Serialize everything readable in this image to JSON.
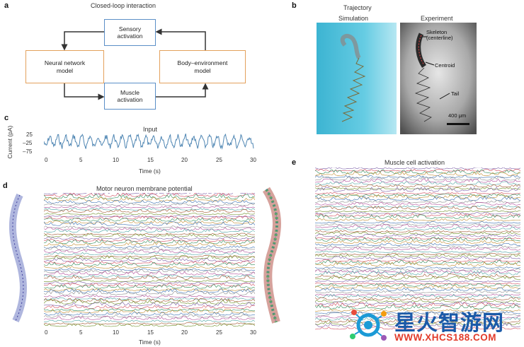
{
  "panel_a": {
    "label": "a",
    "title": "Closed-loop interaction",
    "sensory": "Sensory activation",
    "neural": "Neural network model",
    "body": "Body–environment model",
    "muscle": "Muscle activation"
  },
  "panel_b": {
    "label": "b",
    "title": "Trajectory",
    "sim_label": "Simulation",
    "exp_label": "Experiment",
    "skeleton": "Skeleton (centerline)",
    "centroid": "Centroid",
    "tail": "Tail",
    "scale": "400 μm"
  },
  "panel_c": {
    "label": "c",
    "title": "Input",
    "ylabel": "Current (pA)",
    "xlabel": "Time (s)",
    "yticks": [
      "25",
      "–25",
      "–75"
    ],
    "xticks": [
      "0",
      "5",
      "10",
      "15",
      "20",
      "25",
      "30"
    ]
  },
  "panel_d": {
    "label": "d",
    "title": "Motor neuron membrane potential",
    "xlabel": "Time (s)",
    "xticks": [
      "0",
      "5",
      "10",
      "15",
      "20",
      "25",
      "30"
    ]
  },
  "panel_e": {
    "label": "e",
    "title": "Muscle cell activation"
  },
  "watermark": {
    "cn": "星火智游网",
    "url": "WWW.XHCS188.COM"
  },
  "colors": {
    "box_blue": "#5b8fc7",
    "box_orange": "#e3a15c",
    "input_trace": "#4f86b3",
    "sim_bg": "#3fb9d6"
  }
}
